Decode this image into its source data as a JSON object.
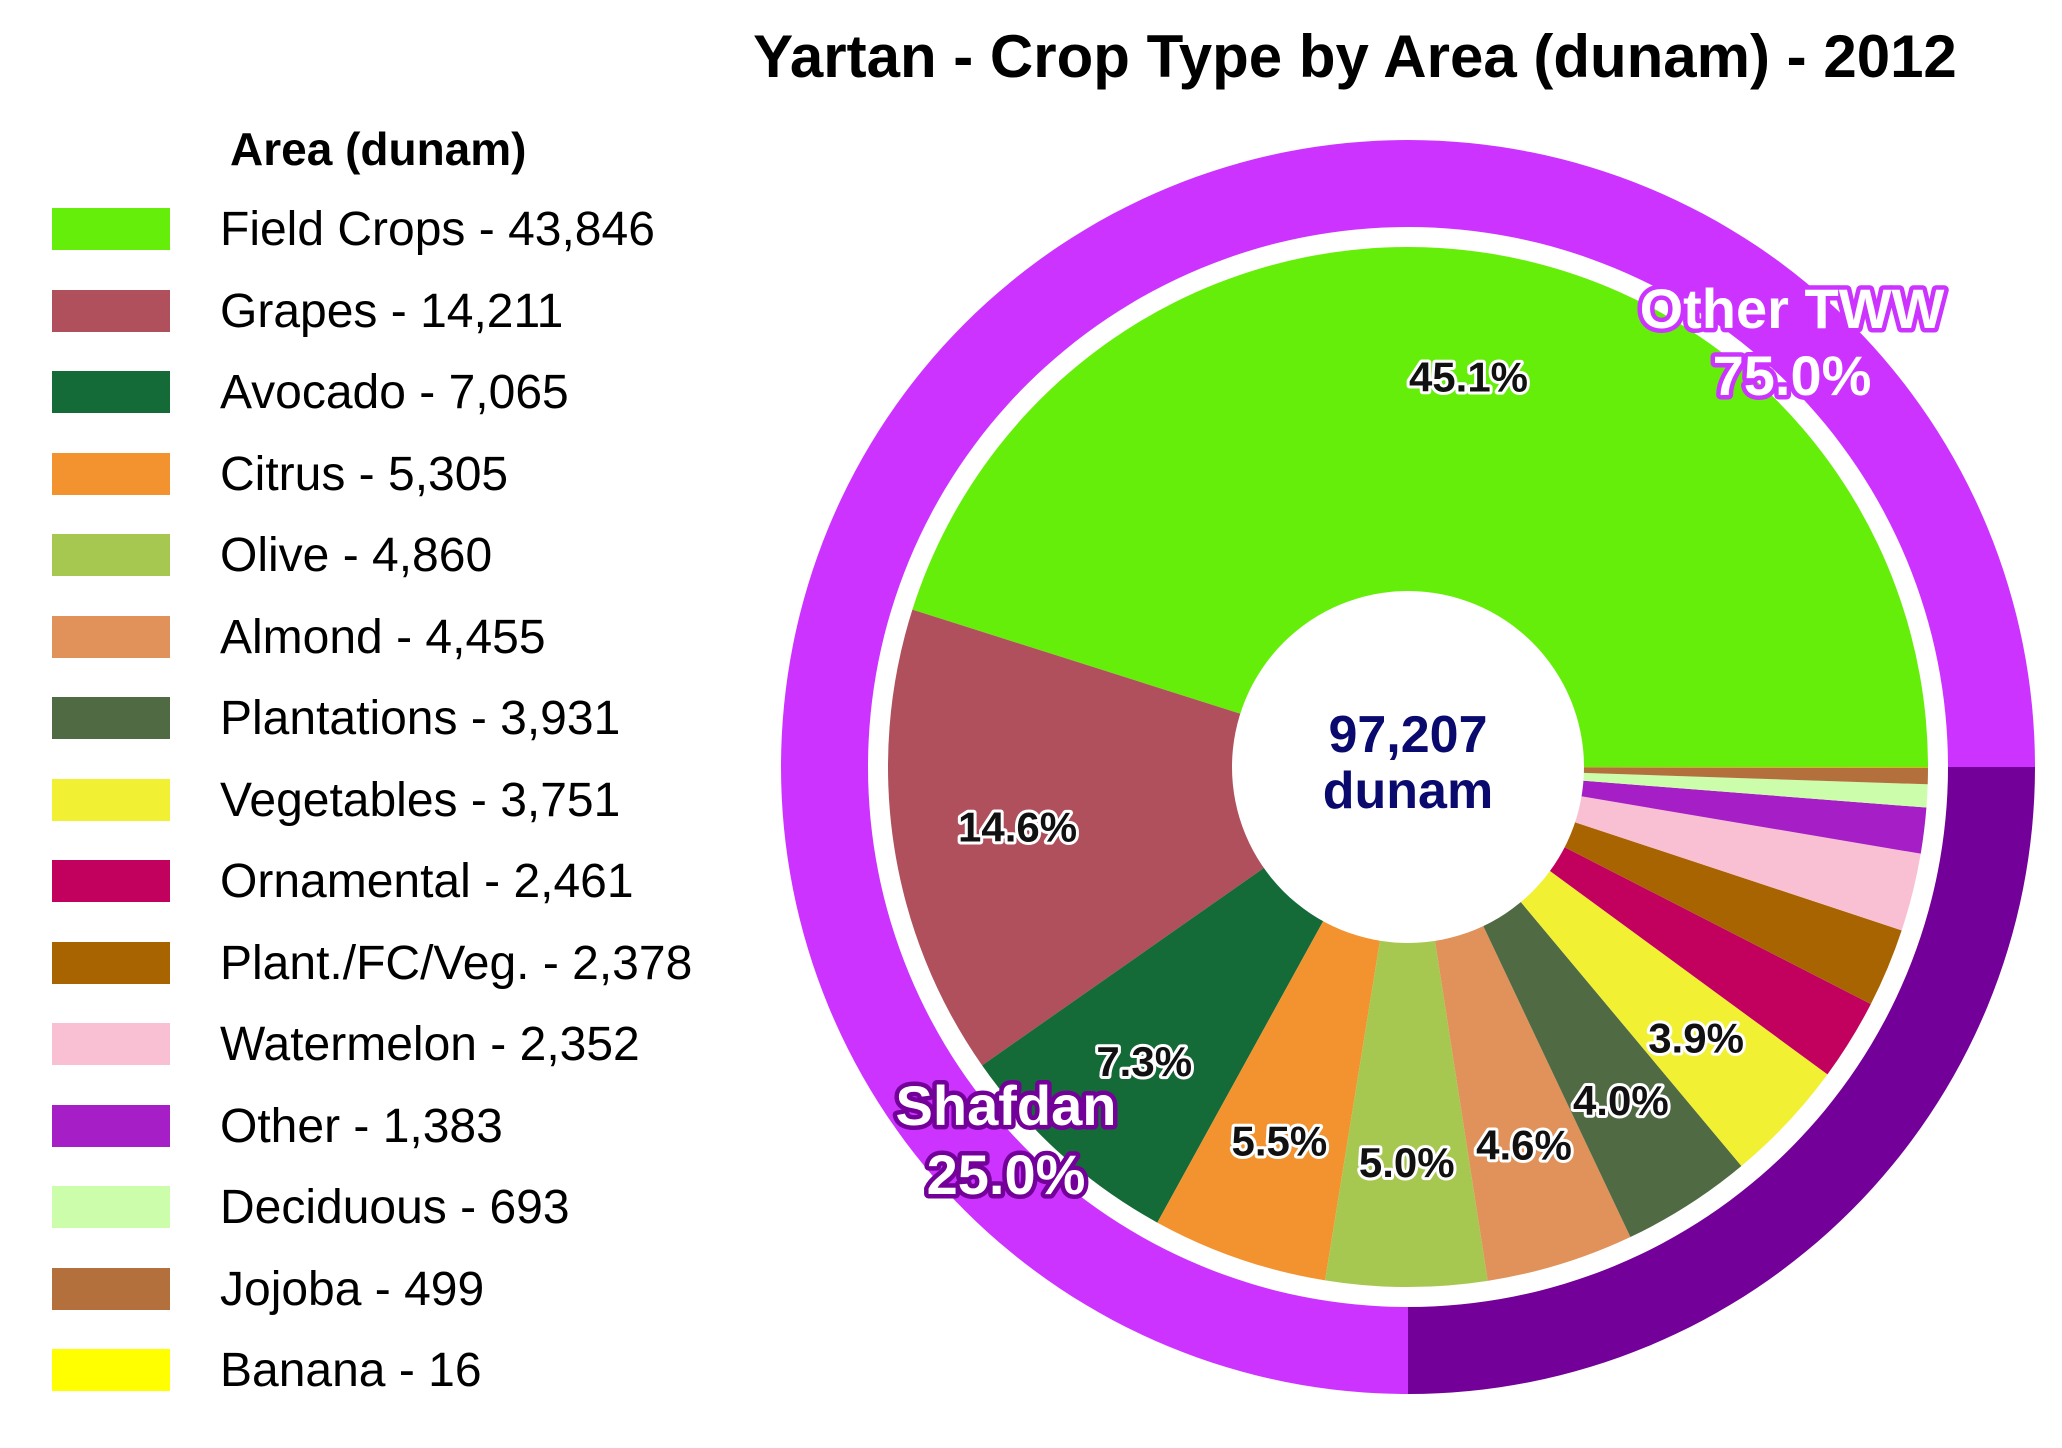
{
  "chart_data": {
    "type": "pie",
    "title": "Yartan - Crop Type by Area (dunam) - 2012",
    "legend_title": "Area (dunam)",
    "legend_position": "left",
    "center_label": [
      "97,207",
      "dunam"
    ],
    "inner_series": [
      {
        "name": "Field Crops",
        "value": 43846,
        "color": "#66EE0B",
        "legend": "Field Crops - 43,846",
        "label": "45.1%"
      },
      {
        "name": "Grapes",
        "value": 14211,
        "color": "#B0505C",
        "legend": "Grapes - 14,211",
        "label": "14.6%"
      },
      {
        "name": "Avocado",
        "value": 7065,
        "color": "#156B38",
        "legend": "Avocado - 7,065",
        "label": "7.3%"
      },
      {
        "name": "Citrus",
        "value": 5305,
        "color": "#F39330",
        "legend": "Citrus - 5,305",
        "label": "5.5%"
      },
      {
        "name": "Olive",
        "value": 4860,
        "color": "#A7C850",
        "legend": "Olive - 4,860",
        "label": "5.0%"
      },
      {
        "name": "Almond",
        "value": 4455,
        "color": "#E0925A",
        "legend": "Almond - 4,455",
        "label": "4.6%"
      },
      {
        "name": "Plantations",
        "value": 3931,
        "color": "#506B43",
        "legend": "Plantations - 3,931",
        "label": "4.0%"
      },
      {
        "name": "Vegetables",
        "value": 3751,
        "color": "#F2F032",
        "legend": "Vegetables - 3,751",
        "label": "3.9%"
      },
      {
        "name": "Ornamental",
        "value": 2461,
        "color": "#C2005E",
        "legend": "Ornamental - 2,461",
        "label": ""
      },
      {
        "name": "Plant./FC/Veg.",
        "value": 2378,
        "color": "#A86400",
        "legend": "Plant./FC/Veg. - 2,378",
        "label": ""
      },
      {
        "name": "Watermelon",
        "value": 2352,
        "color": "#F9BFD2",
        "legend": "Watermelon - 2,352",
        "label": ""
      },
      {
        "name": "Other",
        "value": 1383,
        "color": "#A51EC6",
        "legend": "Other - 1,383",
        "label": ""
      },
      {
        "name": "Deciduous",
        "value": 693,
        "color": "#CBFDAB",
        "legend": "Deciduous - 693",
        "label": ""
      },
      {
        "name": "Jojoba",
        "value": 499,
        "color": "#B3703C",
        "legend": "Jojoba - 499",
        "label": ""
      },
      {
        "name": "Banana",
        "value": 16,
        "color": "#FFFF00",
        "legend": "Banana - 16",
        "label": ""
      }
    ],
    "outer_series": [
      {
        "name": "Other TWW",
        "percent": 75.0,
        "color": "#CC33FF",
        "label": [
          "Other TWW",
          "75.0%"
        ]
      },
      {
        "name": "Shafdan",
        "percent": 25.0,
        "color": "#730099",
        "label": [
          "Shafdan",
          "25.0%"
        ]
      }
    ]
  }
}
